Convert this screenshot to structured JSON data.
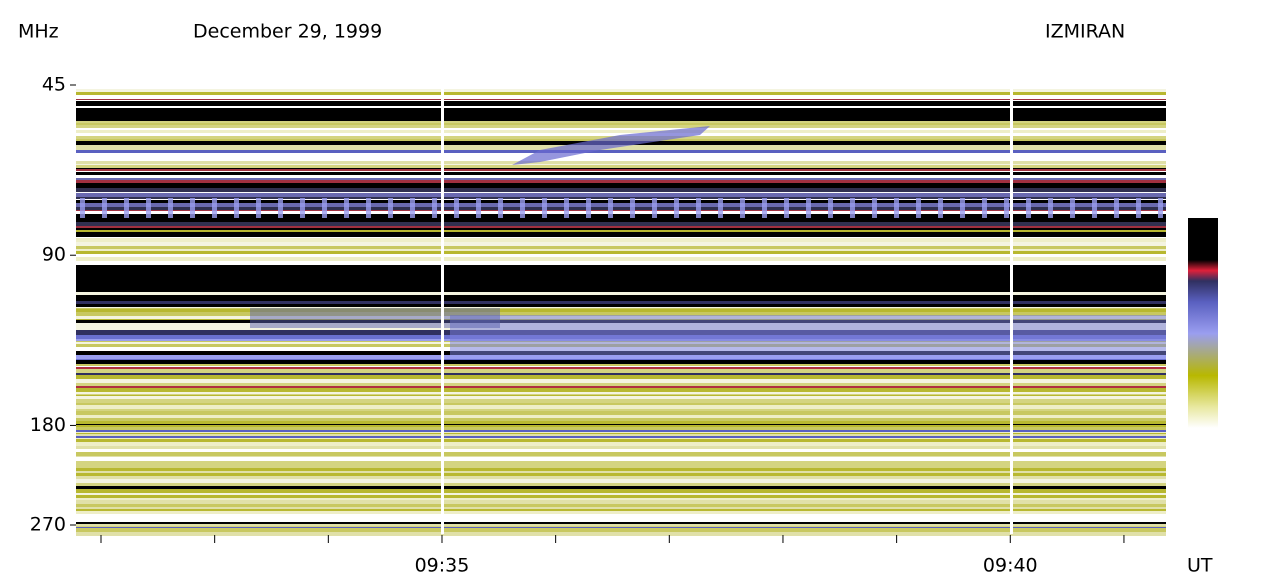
{
  "chart_data": {
    "type": "spectrogram",
    "title": "December 29, 1999",
    "observatory": "IZMIRAN",
    "y_label": "MHz",
    "x_label": "UT",
    "ylim": [
      45,
      270
    ],
    "y_log": true,
    "y_inverted": true,
    "yticks": [
      45,
      90,
      180,
      270
    ],
    "xlim": [
      31.78,
      41.37
    ],
    "xticks": [
      {
        "value": 35,
        "label": "09:35"
      },
      {
        "value": 40,
        "label": "09:40"
      }
    ],
    "minor_xticks": [
      32,
      33,
      34,
      36,
      37,
      38,
      39,
      41
    ]
  }
}
